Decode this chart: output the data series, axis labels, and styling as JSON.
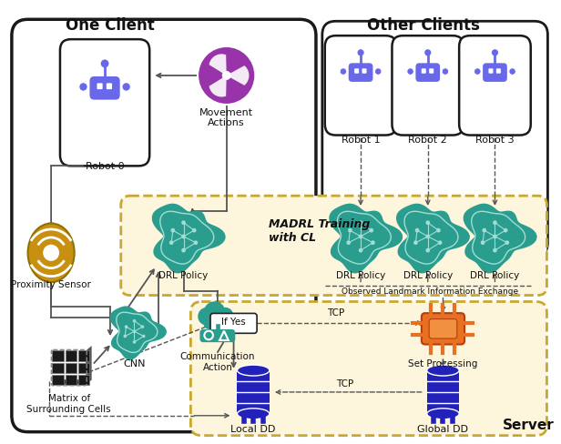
{
  "bg": "#ffffff",
  "one_client_label": "One Client",
  "other_clients_label": "Other Clients",
  "server_label": "Server",
  "madrl_label": "MADRL Training\nwith CL",
  "robot_color": "#6868e8",
  "brain_color": "#2a9d8f",
  "sensor_color": "#c89010",
  "db_color": "#2222bb",
  "chip_color": "#e87020",
  "fan_color": "#9933aa",
  "line_color": "#555555",
  "cream_fill": "#fdf5dc",
  "cream_edge": "#c8a830",
  "cloud_color": "#2a9d8f"
}
